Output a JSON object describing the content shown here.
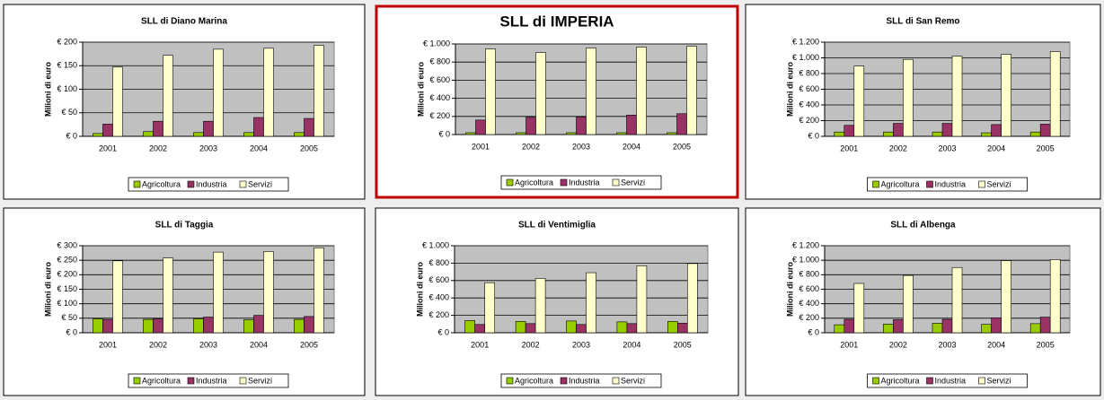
{
  "chart_data": [
    {
      "type": "bar",
      "title": "SLL di Diano Marina",
      "y_label": "Milioni di euro",
      "highlight": false,
      "title_color": "#000000",
      "border_color": "#000000",
      "categories": [
        "2001",
        "2002",
        "2003",
        "2004",
        "2005"
      ],
      "series": [
        {
          "name": "Agricoltura",
          "color": "#99cc00",
          "values": [
            6,
            10,
            8,
            8,
            8
          ]
        },
        {
          "name": "Industria",
          "color": "#993366",
          "values": [
            26,
            32,
            32,
            40,
            38
          ]
        },
        {
          "name": "Servizi",
          "color": "#ffffcc",
          "values": [
            147,
            172,
            185,
            187,
            193
          ]
        }
      ],
      "ylim": [
        0,
        200
      ],
      "yticks": [
        {
          "value": 0,
          "label": "€ 0"
        },
        {
          "value": 50,
          "label": "€ 50"
        },
        {
          "value": 100,
          "label": "€ 100"
        },
        {
          "value": 150,
          "label": "€ 150"
        },
        {
          "value": 200,
          "label": "€ 200"
        }
      ],
      "grid": true,
      "legend": "bottom"
    },
    {
      "type": "bar",
      "title": "SLL di IMPERIA",
      "y_label": "Milioni di euro",
      "highlight": true,
      "title_color": "#cc0000",
      "border_color": "#c00000",
      "categories": [
        "2001",
        "2002",
        "2003",
        "2004",
        "2005"
      ],
      "series": [
        {
          "name": "Agricoltura",
          "color": "#99cc00",
          "values": [
            20,
            20,
            20,
            20,
            20
          ]
        },
        {
          "name": "Industria",
          "color": "#993366",
          "values": [
            160,
            190,
            195,
            215,
            230
          ]
        },
        {
          "name": "Servizi",
          "color": "#ffffcc",
          "values": [
            945,
            905,
            955,
            965,
            975
          ]
        }
      ],
      "ylim": [
        0,
        1000
      ],
      "yticks": [
        {
          "value": 0,
          "label": "€ 0"
        },
        {
          "value": 200,
          "label": "€ 200"
        },
        {
          "value": 400,
          "label": "€ 400"
        },
        {
          "value": 600,
          "label": "€ 600"
        },
        {
          "value": 800,
          "label": "€ 800"
        },
        {
          "value": 1000,
          "label": "€ 1.000"
        }
      ],
      "grid": true,
      "legend": "bottom"
    },
    {
      "type": "bar",
      "title": "SLL di San Remo",
      "y_label": "Milioni di euro",
      "highlight": false,
      "title_color": "#000000",
      "border_color": "#000000",
      "categories": [
        "2001",
        "2002",
        "2003",
        "2004",
        "2005"
      ],
      "series": [
        {
          "name": "Agricoltura",
          "color": "#99cc00",
          "values": [
            55,
            55,
            55,
            45,
            55
          ]
        },
        {
          "name": "Industria",
          "color": "#993366",
          "values": [
            140,
            165,
            165,
            150,
            155
          ]
        },
        {
          "name": "Servizi",
          "color": "#ffffcc",
          "values": [
            895,
            980,
            1020,
            1045,
            1080
          ]
        }
      ],
      "ylim": [
        0,
        1200
      ],
      "yticks": [
        {
          "value": 0,
          "label": "€ 0"
        },
        {
          "value": 200,
          "label": "€ 200"
        },
        {
          "value": 400,
          "label": "€ 400"
        },
        {
          "value": 600,
          "label": "€ 600"
        },
        {
          "value": 800,
          "label": "€ 800"
        },
        {
          "value": 1000,
          "label": "€ 1.000"
        },
        {
          "value": 1200,
          "label": "€ 1.200"
        }
      ],
      "grid": true,
      "legend": "bottom"
    },
    {
      "type": "bar",
      "title": "SLL di Taggia",
      "y_label": "Milioni di euro",
      "highlight": false,
      "title_color": "#000000",
      "border_color": "#000000",
      "categories": [
        "2001",
        "2002",
        "2003",
        "2004",
        "2005"
      ],
      "series": [
        {
          "name": "Agricoltura",
          "color": "#99cc00",
          "values": [
            48,
            46,
            48,
            45,
            46
          ]
        },
        {
          "name": "Industria",
          "color": "#993366",
          "values": [
            46,
            48,
            54,
            60,
            56
          ]
        },
        {
          "name": "Servizi",
          "color": "#ffffcc",
          "values": [
            248,
            258,
            278,
            280,
            293
          ]
        }
      ],
      "ylim": [
        0,
        300
      ],
      "yticks": [
        {
          "value": 0,
          "label": "€ 0"
        },
        {
          "value": 50,
          "label": "€ 50"
        },
        {
          "value": 100,
          "label": "€ 100"
        },
        {
          "value": 150,
          "label": "€ 150"
        },
        {
          "value": 200,
          "label": "€ 200"
        },
        {
          "value": 250,
          "label": "€ 250"
        },
        {
          "value": 300,
          "label": "€ 300"
        }
      ],
      "grid": true,
      "legend": "bottom"
    },
    {
      "type": "bar",
      "title": "SLL di Ventimiglia",
      "y_label": "Milioni di euro",
      "highlight": false,
      "title_color": "#000000",
      "border_color": "#000000",
      "categories": [
        "2001",
        "2002",
        "2003",
        "2004",
        "2005"
      ],
      "series": [
        {
          "name": "Agricoltura",
          "color": "#99cc00",
          "values": [
            140,
            130,
            135,
            125,
            130
          ]
        },
        {
          "name": "Industria",
          "color": "#993366",
          "values": [
            95,
            105,
            95,
            105,
            110
          ]
        },
        {
          "name": "Servizi",
          "color": "#ffffcc",
          "values": [
            575,
            625,
            690,
            770,
            795
          ]
        }
      ],
      "ylim": [
        0,
        1000
      ],
      "yticks": [
        {
          "value": 0,
          "label": "€ 0"
        },
        {
          "value": 200,
          "label": "€ 200"
        },
        {
          "value": 400,
          "label": "€ 400"
        },
        {
          "value": 600,
          "label": "€ 600"
        },
        {
          "value": 800,
          "label": "€ 800"
        },
        {
          "value": 1000,
          "label": "€ 1.000"
        }
      ],
      "grid": true,
      "legend": "bottom"
    },
    {
      "type": "bar",
      "title": "SLL di Albenga",
      "y_label": "Milioni di euro",
      "highlight": false,
      "title_color": "#000000",
      "border_color": "#000000",
      "categories": [
        "2001",
        "2002",
        "2003",
        "2004",
        "2005"
      ],
      "series": [
        {
          "name": "Agricoltura",
          "color": "#99cc00",
          "values": [
            110,
            120,
            130,
            115,
            125
          ]
        },
        {
          "name": "Industria",
          "color": "#993366",
          "values": [
            185,
            180,
            185,
            205,
            215
          ]
        },
        {
          "name": "Servizi",
          "color": "#ffffcc",
          "values": [
            680,
            790,
            900,
            995,
            1010
          ]
        }
      ],
      "ylim": [
        0,
        1200
      ],
      "yticks": [
        {
          "value": 0,
          "label": "€ 0"
        },
        {
          "value": 200,
          "label": "€ 200"
        },
        {
          "value": 400,
          "label": "€ 400"
        },
        {
          "value": 600,
          "label": "€ 600"
        },
        {
          "value": 800,
          "label": "€ 800"
        },
        {
          "value": 1000,
          "label": "€ 1.000"
        },
        {
          "value": 1200,
          "label": "€ 1.200"
        }
      ],
      "grid": true,
      "legend": "bottom"
    }
  ]
}
